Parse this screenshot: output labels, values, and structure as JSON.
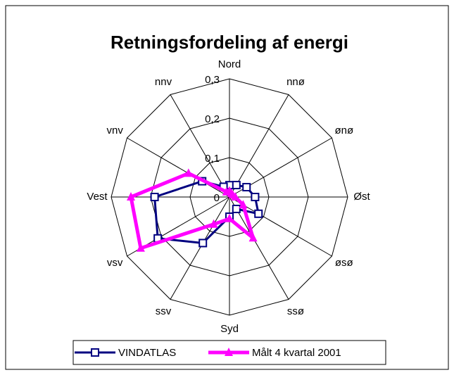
{
  "chart_data": {
    "type": "radar",
    "title": "Retningsfordeling af energi",
    "categories": [
      "Nord",
      "nnø",
      "ønø",
      "Øst",
      "øsø",
      "ssø",
      "Syd",
      "ssv",
      "vsv",
      "Vest",
      "vnv",
      "nnv"
    ],
    "series": [
      {
        "name": "VINDATLAS",
        "color": "#000080",
        "marker": "square",
        "values": [
          0.03,
          0.035,
          0.05,
          0.065,
          0.085,
          0.035,
          0.05,
          0.135,
          0.21,
          0.19,
          0.08,
          0.03
        ]
      },
      {
        "name": "Målt 4 kvartal 2001",
        "color": "#ff00ff",
        "marker": "triangle",
        "values": [
          0.015,
          0.01,
          0.01,
          0.015,
          0.04,
          0.12,
          0.055,
          0.08,
          0.26,
          0.25,
          0.12,
          0.015
        ]
      }
    ],
    "ylim": [
      0,
      0.3
    ],
    "yticks": [
      {
        "value": 0,
        "label": "0"
      },
      {
        "value": 0.1,
        "label": "0,1"
      },
      {
        "value": 0.2,
        "label": "0,2"
      },
      {
        "value": 0.3,
        "label": "0,3"
      }
    ],
    "grid": true,
    "legend": "bottom"
  }
}
